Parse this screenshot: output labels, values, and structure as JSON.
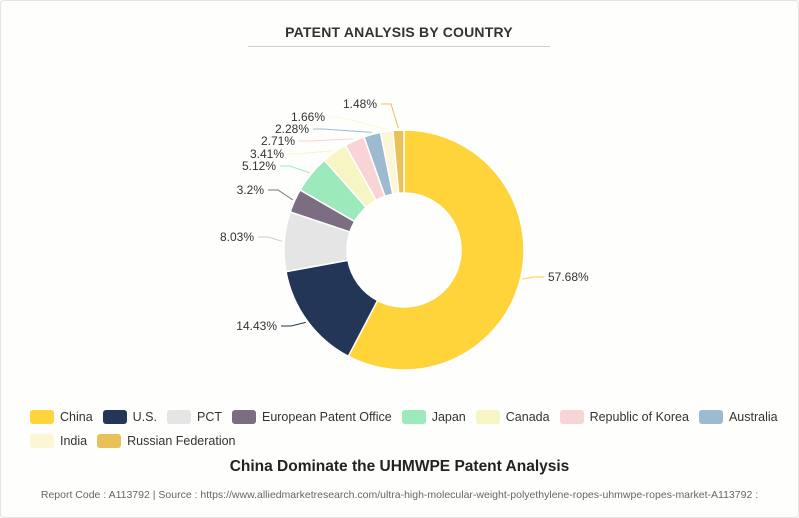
{
  "chart_data": {
    "type": "pie",
    "title": "PATENT ANALYSIS BY COUNTRY",
    "subtitle": "China Dominate the UHMWPE Patent Analysis",
    "categories": [
      "China",
      "U.S.",
      "PCT",
      "European Patent Office",
      "Japan",
      "Canada",
      "Republic of Korea",
      "Australia",
      "India",
      "Russian Federation"
    ],
    "values": [
      57.68,
      14.43,
      8.03,
      3.2,
      5.12,
      3.41,
      2.71,
      2.28,
      1.66,
      1.48
    ],
    "labels": [
      "57.68%",
      "14.43%",
      "8.03%",
      "3.2%",
      "5.12%",
      "3.41%",
      "2.71%",
      "2.28%",
      "1.66%",
      "1.48%"
    ],
    "colors": [
      "#ffd33a",
      "#243657",
      "#e5e5e5",
      "#7d6d82",
      "#9ceabb",
      "#f6f5c3",
      "#f8d4d6",
      "#9cbad0",
      "#fdf6d6",
      "#e8c258"
    ],
    "legend_position": "bottom"
  },
  "footer": {
    "text": "Report Code : A113792  |  Source : https://www.alliedmarketresearch.com/ultra-high-molecular-weight-polyethylene-ropes-uhmwpe-ropes-market-A113792 :"
  }
}
